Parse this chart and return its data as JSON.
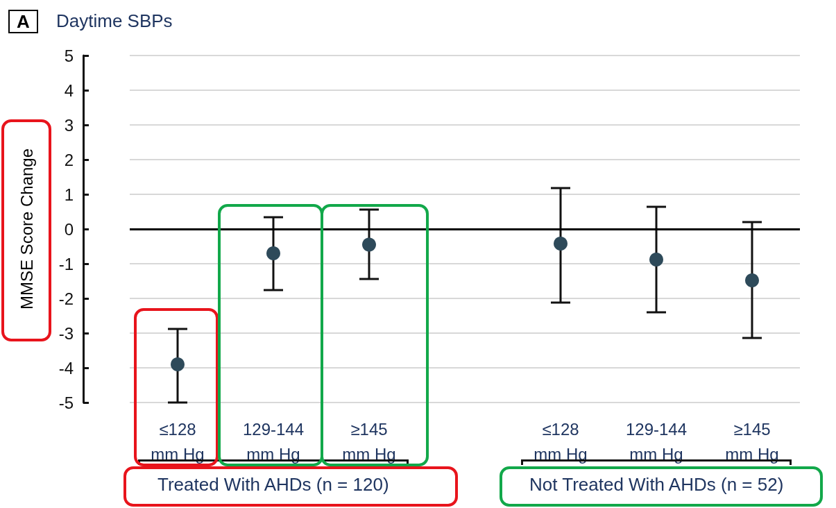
{
  "chart_data": {
    "type": "scatter",
    "title": "Daytime SBPs",
    "ylabel": "MMSE Score Change",
    "annotations": [
      "A",
      "Treated With AHDs (n = 120)",
      "Not Treated With AHDs (n = 52)"
    ],
    "categories": [
      "≤128\nmm Hg",
      "129-144\nmm Hg",
      "≥145\nmm Hg",
      null,
      "≤128\nmm Hg",
      "129-144\nmm Hg",
      "≥145\nmm Hg"
    ],
    "series": [
      {
        "color": "#2e4a5a",
        "values": [
          -3.9,
          -0.7,
          -0.45,
          null,
          -0.42,
          -0.88,
          -1.48
        ],
        "errors": [
          [
            -5.0,
            -2.88
          ],
          [
            -1.76,
            0.34
          ],
          [
            -1.44,
            0.56
          ],
          null,
          [
            -2.12,
            1.18
          ],
          [
            -2.4,
            0.64
          ],
          [
            -3.14,
            0.2
          ]
        ]
      }
    ],
    "ylim": [
      -5,
      5
    ],
    "yticks": [
      -5,
      -4,
      -3,
      -2,
      -1,
      0,
      1,
      2,
      3,
      4,
      5
    ],
    "grid": "y",
    "marker": "circle",
    "legend": false,
    "ref_lines": [
      {
        "axis": "y",
        "value": 0,
        "color": "#000000"
      }
    ]
  }
}
